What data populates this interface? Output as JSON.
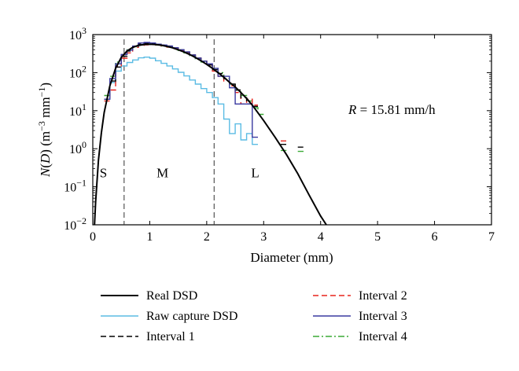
{
  "chart_data": {
    "type": "line",
    "xlabel": "Diameter (mm)",
    "ylabel_parts": [
      "N(D) (m",
      "−3",
      "mm",
      "−1",
      ")"
    ],
    "xlim": [
      0,
      7
    ],
    "ylim": [
      0.01,
      1000
    ],
    "y_scale": "log",
    "x_ticks": [
      0,
      1,
      2,
      3,
      4,
      5,
      6,
      7
    ],
    "x_tick_labels": [
      "0",
      "1",
      "2",
      "3",
      "4",
      "5",
      "6",
      "7"
    ],
    "y_ticks": [
      0.01,
      0.1,
      1,
      10,
      100,
      1000
    ],
    "y_tick_labels": [
      {
        "base": "10",
        "exp": "−2"
      },
      {
        "base": "10",
        "exp": "−1"
      },
      {
        "base": "10",
        "exp": "0"
      },
      {
        "base": "10",
        "exp": "1"
      },
      {
        "base": "10",
        "exp": "2"
      },
      {
        "base": "10",
        "exp": "3"
      }
    ],
    "annotation": {
      "label": "R",
      "value": " = 15.81 mm/h"
    },
    "region_labels": [
      {
        "text": "S",
        "x": 0.12,
        "y": 0.75
      },
      {
        "text": "M",
        "x": 1.12,
        "y": 0.75
      },
      {
        "text": "L",
        "x": 2.78,
        "y": 0.75
      }
    ],
    "vertical_lines": [
      0.55,
      2.13
    ],
    "series": [
      {
        "name": "Real DSD",
        "color": "#000000",
        "style": "solid",
        "kind": "curve",
        "points": [
          [
            0.03,
            0.01
          ],
          [
            0.05,
            0.04
          ],
          [
            0.1,
            0.5
          ],
          [
            0.15,
            2.6
          ],
          [
            0.2,
            9
          ],
          [
            0.3,
            45
          ],
          [
            0.4,
            130
          ],
          [
            0.5,
            250
          ],
          [
            0.6,
            370
          ],
          [
            0.7,
            460
          ],
          [
            0.8,
            520
          ],
          [
            0.9,
            550
          ],
          [
            1.0,
            560
          ],
          [
            1.1,
            550
          ],
          [
            1.2,
            525
          ],
          [
            1.3,
            490
          ],
          [
            1.4,
            450
          ],
          [
            1.5,
            400
          ],
          [
            1.6,
            350
          ],
          [
            1.7,
            300
          ],
          [
            1.8,
            250
          ],
          [
            1.9,
            205
          ],
          [
            2.0,
            165
          ],
          [
            2.1,
            130
          ],
          [
            2.2,
            100
          ],
          [
            2.3,
            76
          ],
          [
            2.4,
            56
          ],
          [
            2.5,
            42
          ],
          [
            2.6,
            30
          ],
          [
            2.7,
            21
          ],
          [
            2.8,
            14
          ],
          [
            3.0,
            5.5
          ],
          [
            3.2,
            2
          ],
          [
            3.4,
            0.7
          ],
          [
            3.6,
            0.22
          ],
          [
            3.8,
            0.06
          ],
          [
            4.0,
            0.017
          ],
          [
            4.1,
            0.01
          ]
        ]
      },
      {
        "name": "Raw capture DSD",
        "color": "#5bbce4",
        "style": "solid",
        "kind": "step",
        "bin_width": 0.1,
        "bins": [
          [
            0.2,
            20
          ],
          [
            0.3,
            55
          ],
          [
            0.4,
            110
          ],
          [
            0.5,
            150
          ],
          [
            0.6,
            185
          ],
          [
            0.7,
            215
          ],
          [
            0.8,
            245
          ],
          [
            0.9,
            255
          ],
          [
            1.0,
            240
          ],
          [
            1.1,
            205
          ],
          [
            1.2,
            175
          ],
          [
            1.3,
            150
          ],
          [
            1.4,
            125
          ],
          [
            1.5,
            102
          ],
          [
            1.6,
            82
          ],
          [
            1.7,
            64
          ],
          [
            1.8,
            50
          ],
          [
            1.9,
            38
          ],
          [
            2.0,
            30
          ],
          [
            2.1,
            22
          ],
          [
            2.2,
            15
          ],
          [
            2.3,
            6
          ],
          [
            2.4,
            2.5
          ],
          [
            2.5,
            4.5
          ],
          [
            2.6,
            1.7
          ],
          [
            2.7,
            2.5
          ],
          [
            2.8,
            1.3
          ]
        ]
      },
      {
        "name": "Interval 1",
        "color": "#000000",
        "style": "dash",
        "kind": "step",
        "bin_width": 0.1,
        "bins": [
          [
            0.2,
            20
          ],
          [
            0.3,
            60
          ],
          [
            0.4,
            140
          ],
          [
            0.5,
            270
          ],
          [
            0.6,
            370
          ],
          [
            0.7,
            480
          ],
          [
            0.8,
            560
          ],
          [
            0.9,
            590
          ],
          [
            1.0,
            580
          ],
          [
            1.1,
            560
          ],
          [
            1.2,
            530
          ],
          [
            1.3,
            500
          ],
          [
            1.4,
            450
          ],
          [
            1.5,
            400
          ],
          [
            1.6,
            350
          ],
          [
            1.7,
            290
          ],
          [
            1.8,
            240
          ],
          [
            1.9,
            200
          ],
          [
            2.0,
            160
          ],
          [
            2.1,
            120
          ],
          [
            2.2,
            95
          ],
          [
            2.3,
            70
          ],
          [
            2.4,
            50
          ],
          [
            2.5,
            35
          ],
          [
            2.6,
            22
          ],
          [
            2.7,
            15
          ],
          [
            2.8,
            13
          ],
          [
            3.3,
            1.3
          ],
          [
            3.6,
            1.1
          ]
        ]
      },
      {
        "name": "Interval 2",
        "color": "#e8241c",
        "style": "dash",
        "kind": "step",
        "bin_width": 0.1,
        "bins": [
          [
            0.2,
            18
          ],
          [
            0.3,
            35
          ],
          [
            0.4,
            150
          ],
          [
            0.5,
            240
          ],
          [
            0.6,
            330
          ],
          [
            0.7,
            460
          ],
          [
            0.8,
            520
          ],
          [
            0.9,
            540
          ],
          [
            1.0,
            550
          ],
          [
            1.1,
            540
          ],
          [
            1.2,
            510
          ],
          [
            1.3,
            470
          ],
          [
            1.4,
            430
          ],
          [
            1.5,
            390
          ],
          [
            1.6,
            340
          ],
          [
            1.7,
            290
          ],
          [
            1.8,
            240
          ],
          [
            1.9,
            200
          ],
          [
            2.0,
            160
          ],
          [
            2.1,
            110
          ],
          [
            2.2,
            80
          ],
          [
            2.3,
            60
          ],
          [
            2.4,
            45
          ],
          [
            2.5,
            30
          ],
          [
            2.6,
            15
          ],
          [
            2.7,
            20
          ],
          [
            2.8,
            14
          ],
          [
            3.3,
            1.6
          ]
        ]
      },
      {
        "name": "Interval 3",
        "color": "#3a3aa0",
        "style": "solid",
        "kind": "step",
        "bin_width": 0.1,
        "bins": [
          [
            0.2,
            20
          ],
          [
            0.3,
            70
          ],
          [
            0.4,
            170
          ],
          [
            0.5,
            300
          ],
          [
            0.6,
            390
          ],
          [
            0.7,
            500
          ],
          [
            0.8,
            600
          ],
          [
            0.9,
            620
          ],
          [
            1.0,
            600
          ],
          [
            1.1,
            560
          ],
          [
            1.2,
            530
          ],
          [
            1.3,
            500
          ],
          [
            1.4,
            450
          ],
          [
            1.5,
            400
          ],
          [
            1.6,
            350
          ],
          [
            1.7,
            290
          ],
          [
            1.8,
            240
          ],
          [
            1.9,
            200
          ],
          [
            2.0,
            170
          ],
          [
            2.1,
            130
          ],
          [
            2.2,
            80
          ],
          [
            2.3,
            80
          ],
          [
            2.4,
            40
          ],
          [
            2.5,
            15
          ],
          [
            2.6,
            15
          ],
          [
            2.7,
            15
          ],
          [
            2.8,
            2
          ]
        ]
      },
      {
        "name": "Interval 4",
        "color": "#3aaa35",
        "style": "dashdot",
        "kind": "step",
        "bin_width": 0.1,
        "bins": [
          [
            0.2,
            25
          ],
          [
            0.3,
            80
          ],
          [
            0.4,
            190
          ],
          [
            0.5,
            300
          ],
          [
            0.6,
            400
          ],
          [
            0.7,
            480
          ],
          [
            0.8,
            540
          ],
          [
            0.9,
            560
          ],
          [
            1.0,
            550
          ],
          [
            1.1,
            530
          ],
          [
            1.2,
            500
          ],
          [
            1.3,
            470
          ],
          [
            1.4,
            430
          ],
          [
            1.5,
            380
          ],
          [
            1.6,
            330
          ],
          [
            1.7,
            280
          ],
          [
            1.8,
            230
          ],
          [
            1.9,
            190
          ],
          [
            2.0,
            160
          ],
          [
            2.1,
            130
          ],
          [
            2.2,
            100
          ],
          [
            2.3,
            70
          ],
          [
            2.4,
            50
          ],
          [
            2.5,
            35
          ],
          [
            2.6,
            25
          ],
          [
            2.7,
            18
          ],
          [
            2.8,
            12
          ],
          [
            2.9,
            8
          ],
          [
            3.3,
            0.9
          ],
          [
            3.6,
            0.85
          ]
        ]
      }
    ],
    "legend": {
      "columns": 2,
      "entries": [
        "Real DSD",
        "Raw capture DSD",
        "Interval 1",
        "Interval 2",
        "Interval 3",
        "Interval 4"
      ]
    }
  }
}
